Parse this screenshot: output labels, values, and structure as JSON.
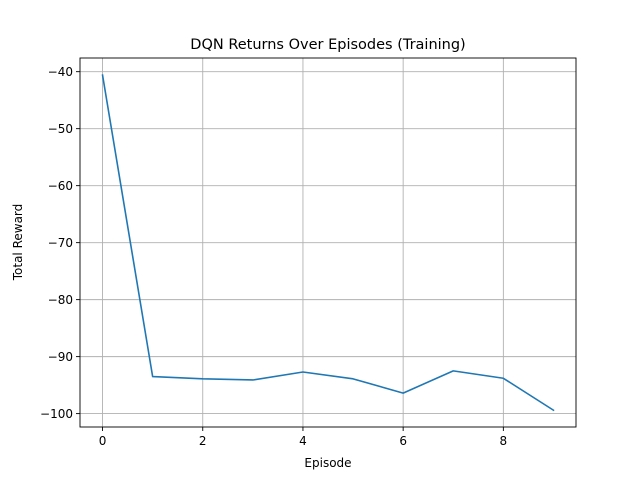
{
  "chart_data": {
    "type": "line",
    "title": "DQN Returns Over Episodes (Training)",
    "xlabel": "Episode",
    "ylabel": "Total Reward",
    "x": [
      0,
      1,
      2,
      3,
      4,
      5,
      6,
      7,
      8,
      9
    ],
    "series": [
      {
        "values": [
          -40.6,
          -93.5,
          -93.9,
          -94.1,
          -92.7,
          -93.9,
          -96.4,
          -92.5,
          -93.8,
          -99.4
        ],
        "color": "#1f77b4"
      }
    ],
    "xlim": [
      -0.45,
      9.45
    ],
    "ylim": [
      -102.35,
      -37.6
    ],
    "xticks": [
      0,
      2,
      4,
      6,
      8
    ],
    "xtick_labels": [
      "0",
      "2",
      "4",
      "6",
      "8"
    ],
    "yticks": [
      -100,
      -90,
      -80,
      -70,
      -60,
      -50,
      -40
    ],
    "ytick_labels": [
      "−100",
      "−90",
      "−80",
      "−70",
      "−60",
      "−50",
      "−40"
    ],
    "grid": true,
    "legend": false
  }
}
